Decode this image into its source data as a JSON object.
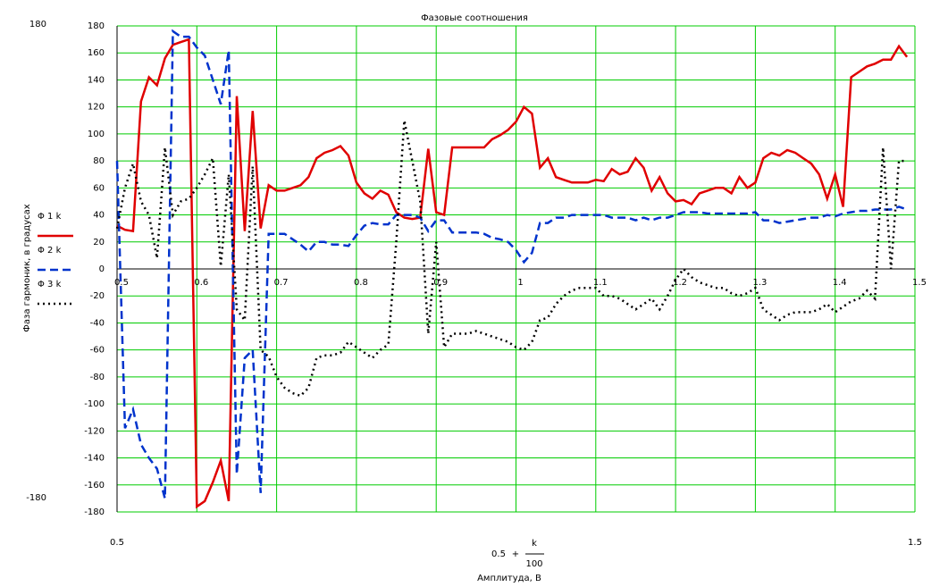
{
  "chart_data": {
    "type": "line",
    "title": "Фазовые соотношения",
    "y_label": "Фаза гармоник, в градусах",
    "x_label": "Амплитуда, В",
    "x_expression": {
      "left": "0.5",
      "operator": "+",
      "numerator": "k",
      "denominator": "100"
    },
    "x": [
      0.5,
      0.51,
      0.52,
      0.53,
      0.54,
      0.55,
      0.56,
      0.57,
      0.58,
      0.59,
      0.6,
      0.61,
      0.62,
      0.63,
      0.64,
      0.65,
      0.66,
      0.67,
      0.68,
      0.69,
      0.7,
      0.71,
      0.72,
      0.73,
      0.74,
      0.75,
      0.76,
      0.77,
      0.78,
      0.79,
      0.8,
      0.81,
      0.82,
      0.83,
      0.84,
      0.85,
      0.86,
      0.87,
      0.88,
      0.89,
      0.9,
      0.91,
      0.92,
      0.93,
      0.94,
      0.95,
      0.96,
      0.97,
      0.98,
      0.99,
      1.0,
      1.01,
      1.02,
      1.03,
      1.04,
      1.05,
      1.06,
      1.07,
      1.08,
      1.09,
      1.1,
      1.11,
      1.12,
      1.13,
      1.14,
      1.15,
      1.16,
      1.17,
      1.18,
      1.19,
      1.2,
      1.21,
      1.22,
      1.23,
      1.24,
      1.25,
      1.26,
      1.27,
      1.28,
      1.29,
      1.3,
      1.31,
      1.32,
      1.33,
      1.34,
      1.35,
      1.36,
      1.37,
      1.38,
      1.39,
      1.4,
      1.41,
      1.42,
      1.43,
      1.44,
      1.45,
      1.46,
      1.47,
      1.48,
      1.49
    ],
    "series": [
      {
        "name": "Φ 1 k",
        "color": "#e00000",
        "dash": "solid",
        "values": [
          32,
          29,
          28,
          124,
          142,
          136,
          156,
          166,
          168,
          170,
          -176,
          -172,
          -158,
          -142,
          -172,
          128,
          28,
          117,
          30,
          62,
          58,
          58,
          60,
          62,
          68,
          82,
          86,
          88,
          91,
          84,
          64,
          56,
          52,
          58,
          55,
          42,
          38,
          37,
          38,
          89,
          42,
          40,
          90,
          90,
          90,
          90,
          90,
          96,
          99,
          103,
          109,
          120,
          115,
          75,
          82,
          68,
          66,
          64,
          64,
          64,
          66,
          65,
          74,
          70,
          72,
          82,
          75,
          58,
          68,
          56,
          50,
          51,
          48,
          56,
          58,
          60,
          60,
          56,
          68,
          60,
          64,
          82,
          86,
          84,
          88,
          86,
          82,
          78,
          70,
          52,
          70,
          46,
          142,
          146,
          150,
          152,
          155,
          155,
          165,
          157
        ]
      },
      {
        "name": "Φ 2 k",
        "color": "#0033cc",
        "dash": "dashed",
        "values": [
          80,
          -118,
          -104,
          -130,
          -140,
          -148,
          -170,
          176,
          172,
          172,
          164,
          158,
          140,
          122,
          162,
          -152,
          -66,
          -60,
          -166,
          26,
          26,
          26,
          22,
          18,
          13,
          20,
          20,
          18,
          18,
          17,
          25,
          32,
          34,
          33,
          33,
          40,
          40,
          40,
          38,
          28,
          36,
          36,
          27,
          27,
          27,
          27,
          26,
          23,
          22,
          20,
          14,
          5,
          12,
          34,
          34,
          38,
          38,
          40,
          40,
          40,
          40,
          40,
          38,
          38,
          38,
          36,
          38,
          36,
          38,
          38,
          40,
          42,
          42,
          42,
          41,
          41,
          41,
          41,
          41,
          41,
          42,
          36,
          36,
          34,
          35,
          36,
          37,
          38,
          38,
          40,
          39,
          41,
          42,
          43,
          43,
          44,
          44,
          44,
          46,
          44
        ]
      },
      {
        "name": "Φ 3 k",
        "color": "#000000",
        "dash": "dotted",
        "values": [
          30,
          60,
          78,
          50,
          40,
          8,
          90,
          40,
          50,
          52,
          60,
          70,
          82,
          2,
          70,
          -30,
          -38,
          76,
          -60,
          -65,
          -80,
          -88,
          -92,
          -94,
          -88,
          -66,
          -64,
          -64,
          -62,
          -54,
          -58,
          -62,
          -66,
          -60,
          -56,
          20,
          110,
          80,
          50,
          -48,
          20,
          -58,
          -48,
          -48,
          -48,
          -46,
          -48,
          -50,
          -52,
          -54,
          -58,
          -60,
          -54,
          -38,
          -36,
          -26,
          -20,
          -16,
          -14,
          -14,
          -14,
          -20,
          -20,
          -22,
          -26,
          -30,
          -26,
          -22,
          -30,
          -20,
          -8,
          0,
          -6,
          -10,
          -12,
          -14,
          -14,
          -18,
          -20,
          -18,
          -14,
          -30,
          -34,
          -38,
          -34,
          -32,
          -32,
          -32,
          -30,
          -26,
          -32,
          -28,
          -24,
          -22,
          -16,
          -22,
          90,
          0,
          80,
          80
        ]
      }
    ],
    "xlim": [
      0.5,
      1.5
    ],
    "ylim": [
      -180,
      180
    ],
    "xticks": [
      0.5,
      0.6,
      0.7,
      0.8,
      0.9,
      1,
      1.1,
      1.2,
      1.3,
      1.4,
      1.5
    ],
    "yticks": [
      -180,
      -160,
      -140,
      -120,
      -100,
      -80,
      -60,
      -40,
      -20,
      0,
      20,
      40,
      60,
      80,
      100,
      120,
      140,
      160,
      180
    ],
    "grid": true,
    "grid_color": "#00cc00"
  }
}
